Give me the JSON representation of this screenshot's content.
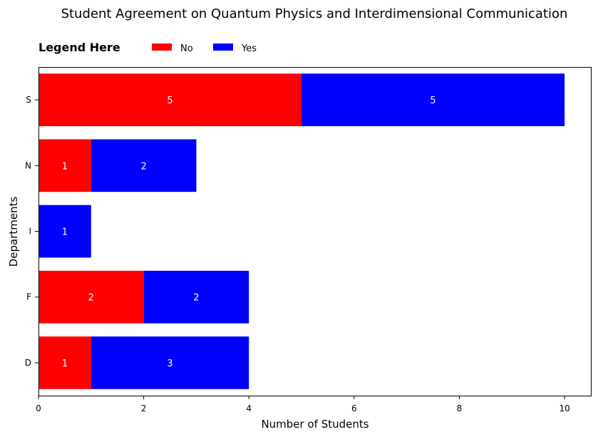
{
  "chart_data": {
    "type": "bar",
    "orientation": "horizontal",
    "stacked": true,
    "title": "Student Agreement on Quantum Physics and Interdimensional Communication",
    "xlabel": "Number of Students",
    "ylabel": "Departments",
    "categories": [
      "D",
      "F",
      "I",
      "N",
      "S"
    ],
    "series": [
      {
        "name": "No",
        "color": "#ff0000",
        "values": [
          1,
          2,
          0,
          1,
          5
        ]
      },
      {
        "name": "Yes",
        "color": "#0000ff",
        "values": [
          3,
          2,
          1,
          2,
          5
        ]
      }
    ],
    "xlim": [
      0,
      10.5
    ],
    "xticks": [
      0,
      2,
      4,
      6,
      8,
      10
    ],
    "grid": false,
    "legend": {
      "title": "Legend Here",
      "placement": "top-left, above plot",
      "entries": [
        "No",
        "Yes"
      ]
    }
  }
}
